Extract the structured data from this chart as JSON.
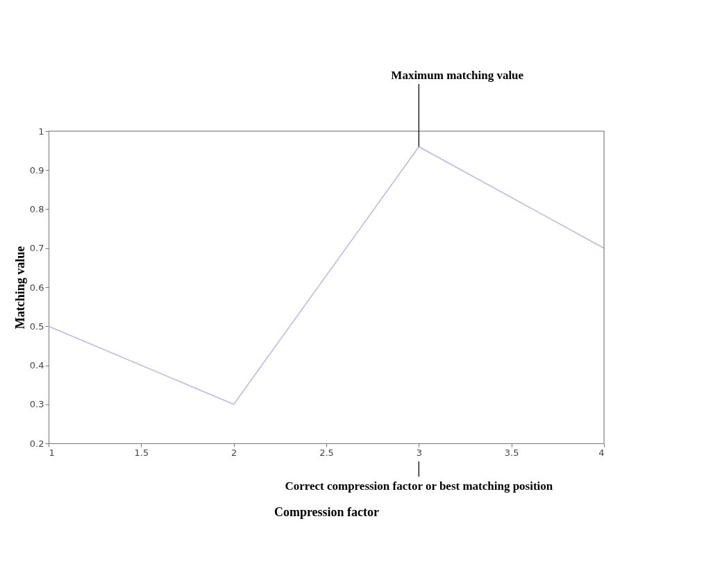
{
  "chart_data": {
    "type": "line",
    "xlabel": "Compression factor",
    "ylabel": "Matching value",
    "x": [
      1,
      2,
      3,
      4
    ],
    "series": [
      {
        "color": "#b4b8e6",
        "values": [
          0.5,
          0.3,
          0.96,
          0.7
        ]
      }
    ],
    "xlim": [
      1,
      4
    ],
    "xticks": [
      1,
      1.5,
      2,
      2.5,
      3,
      3.5,
      4
    ],
    "ylim": [
      0.2,
      1
    ],
    "yticks": [
      0.2,
      0.3,
      0.4,
      0.5,
      0.6,
      0.7,
      0.8,
      0.9,
      1
    ],
    "grid": false,
    "marker": "none",
    "line_style": "solid",
    "annotations": [
      {
        "text": "Maximum matching value",
        "x": 3,
        "y": 0.96
      },
      {
        "text": "Correct compression factor or best matching position",
        "x": 3
      }
    ]
  }
}
